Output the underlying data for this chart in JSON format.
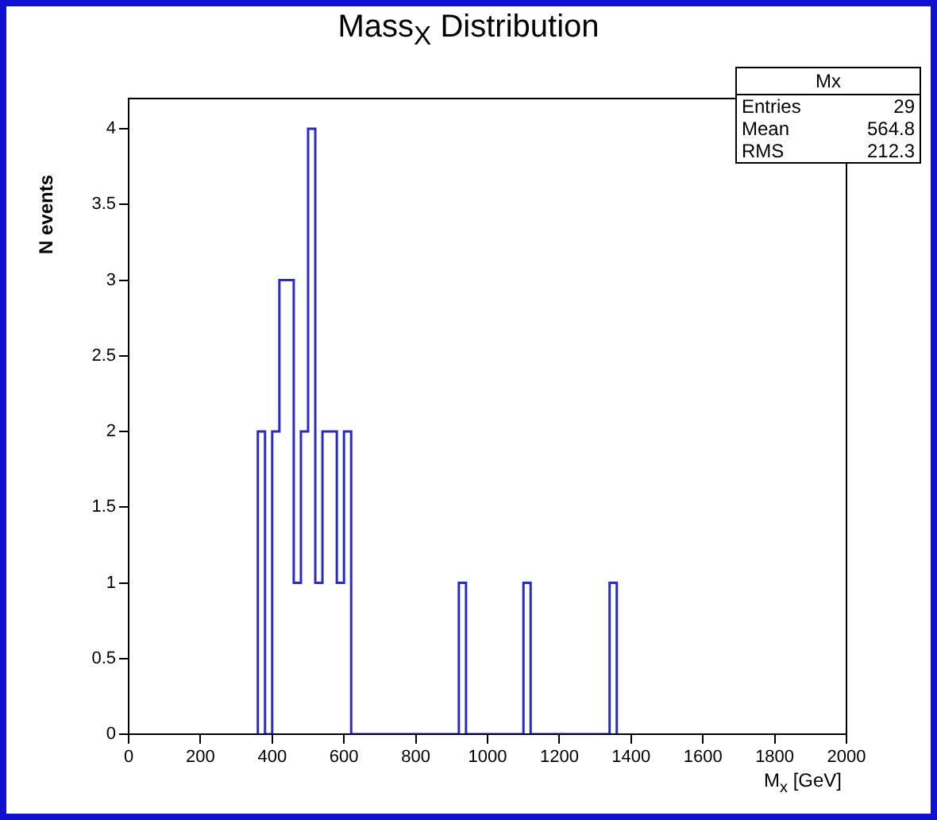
{
  "chart_data": {
    "type": "histogram",
    "title": "Mass$_{X}$ Distribution",
    "xlabel": "M$_{x}$  [GeV]",
    "ylabel": "N events",
    "bins": [
      360,
      380,
      400,
      420,
      440,
      460,
      480,
      500,
      520,
      540,
      560,
      580,
      600,
      620,
      640,
      660,
      680,
      700,
      720,
      740,
      760,
      780,
      800,
      820,
      840,
      860,
      880,
      900,
      920,
      940,
      960,
      980,
      1000,
      1020,
      1040,
      1060,
      1080,
      1100,
      1120,
      1140,
      1160,
      1180,
      1200,
      1220,
      1240,
      1260,
      1280,
      1300,
      1320,
      1340,
      1360
    ],
    "values": [
      2,
      0,
      2,
      3,
      3,
      1,
      2,
      4,
      1,
      2,
      2,
      1,
      2,
      0,
      0,
      0,
      0,
      0,
      0,
      0,
      0,
      0,
      0,
      0,
      0,
      0,
      0,
      0,
      1,
      0,
      0,
      0,
      0,
      0,
      0,
      0,
      0,
      1,
      0,
      0,
      0,
      0,
      0,
      0,
      0,
      0,
      0,
      0,
      0,
      1
    ],
    "color": "#2a2ac4",
    "xlim": [
      0,
      2000
    ],
    "xticks": [
      0,
      200,
      400,
      600,
      800,
      1000,
      1200,
      1400,
      1600,
      1800,
      2000
    ],
    "ylim": [
      0,
      4.2
    ],
    "yticks": [
      0,
      0.5,
      1,
      1.5,
      2,
      2.5,
      3,
      3.5,
      4
    ],
    "grid": false,
    "legend": false,
    "annotations": [
      "Mx",
      "Entries",
      "29",
      "Mean",
      "564.8",
      "RMS",
      "212.3"
    ]
  }
}
